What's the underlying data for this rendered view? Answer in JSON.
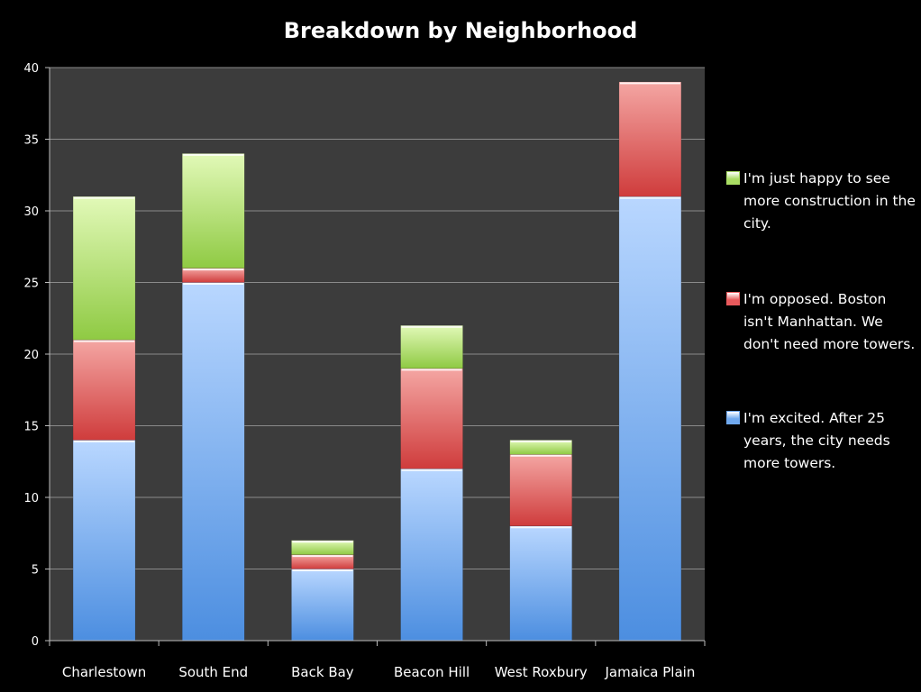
{
  "chart_data": {
    "type": "bar",
    "stacked": true,
    "title": "Breakdown by Neighborhood",
    "categories": [
      "Charlestown",
      "South End",
      "Back Bay",
      "Beacon Hill",
      "West Roxbury",
      "Jamaica Plain"
    ],
    "series": [
      {
        "name": "I'm excited. After 25 years, the city needs more towers.",
        "values": [
          14,
          25,
          5,
          12,
          8,
          31
        ],
        "color": "#6fa8ee"
      },
      {
        "name": "I'm opposed. Boston isn't Manhattan. We don't need more towers.",
        "values": [
          7,
          1,
          1,
          7,
          5,
          8
        ],
        "color": "#e8595c"
      },
      {
        "name": "I'm just happy to see more construction in the city.",
        "values": [
          10,
          8,
          1,
          3,
          1,
          0
        ],
        "color": "#a9dd63"
      }
    ],
    "ylim": [
      0,
      40
    ],
    "yticks": [
      0,
      5,
      10,
      15,
      20,
      25,
      30,
      35,
      40
    ],
    "grid": true,
    "legend_position": "right"
  },
  "legend": [
    {
      "label": "I'm just happy to see more construction in the city.",
      "color": "#a9dd63",
      "swatch_icon": "legend-swatch-icon"
    },
    {
      "label": "I'm opposed. Boston isn't Manhattan. We don't need more towers.",
      "color": "#e8595c",
      "swatch_icon": "legend-swatch-icon"
    },
    {
      "label": "I'm excited. After 25 years, the city needs more towers.",
      "color": "#6fa8ee",
      "swatch_icon": "legend-swatch-icon"
    }
  ]
}
